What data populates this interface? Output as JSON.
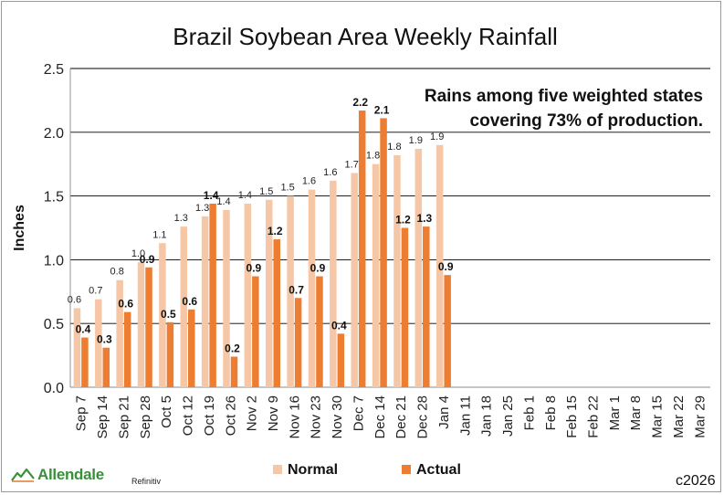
{
  "chart_data": {
    "type": "bar",
    "title": "Brazil Soybean Area Weekly Rainfall",
    "ylabel": "Inches",
    "xlabel": "",
    "ylim": [
      0,
      2.5
    ],
    "yticks": [
      "0.0",
      "0.5",
      "1.0",
      "1.5",
      "2.0",
      "2.5"
    ],
    "grid": true,
    "legend_position": "bottom",
    "annotation": [
      "Rains among five weighted states",
      "covering 73% of production."
    ],
    "categories": [
      "Sep 7",
      "Sep 14",
      "Sep 21",
      "Sep 28",
      "Oct 5",
      "Oct 12",
      "Oct 19",
      "Oct 26",
      "Nov 2",
      "Nov 9",
      "Nov 16",
      "Nov 23",
      "Nov 30",
      "Dec 7",
      "Dec 14",
      "Dec 21",
      "Dec 28",
      "Jan 4",
      "Jan 11",
      "Jan 18",
      "Jan 25",
      "Feb 1",
      "Feb 8",
      "Feb 15",
      "Feb 22",
      "Mar 1",
      "Mar 8",
      "Mar 15",
      "Mar 22",
      "Mar 29"
    ],
    "series": [
      {
        "name": "Normal",
        "color": "#f6c7a6",
        "values": [
          0.62,
          0.69,
          0.84,
          0.98,
          1.13,
          1.26,
          1.34,
          1.39,
          1.44,
          1.47,
          1.5,
          1.55,
          1.62,
          1.68,
          1.75,
          1.82,
          1.87,
          1.9,
          null,
          null,
          null,
          null,
          null,
          null,
          null,
          null,
          null,
          null,
          null,
          null
        ],
        "labels": [
          "0.6",
          "0.7",
          "0.8",
          "1.0",
          "1.1",
          "1.3",
          "1.3",
          "1.4",
          "1.4",
          "1.5",
          "1.5",
          "1.6",
          "1.6",
          "1.7",
          "1.8",
          "1.8",
          "1.9",
          "1.9",
          "",
          "",
          "",
          "",
          "",
          "",
          "",
          "",
          "",
          "",
          "",
          ""
        ]
      },
      {
        "name": "Actual",
        "color": "#ed7d31",
        "values": [
          0.39,
          0.31,
          0.59,
          0.94,
          0.51,
          0.61,
          1.44,
          0.24,
          0.87,
          1.16,
          0.7,
          0.87,
          0.42,
          2.17,
          2.11,
          1.25,
          1.26,
          0.88,
          null,
          null,
          null,
          null,
          null,
          null,
          null,
          null,
          null,
          null,
          null,
          null
        ],
        "labels": [
          "0.4",
          "0.3",
          "0.6",
          "0.9",
          "0.5",
          "0.6",
          "1.4",
          "0.2",
          "0.9",
          "1.2",
          "0.7",
          "0.9",
          "0.4",
          "2.2",
          "2.1",
          "1.2",
          "1.3",
          "0.9",
          "",
          "",
          "",
          "",
          "",
          "",
          "",
          "",
          "",
          "",
          "",
          ""
        ]
      }
    ]
  },
  "footer": {
    "brand": "Allendale",
    "brand_icon": "allendale-leaf-logo",
    "source": "Refinitiv",
    "copyright": "c2026"
  }
}
